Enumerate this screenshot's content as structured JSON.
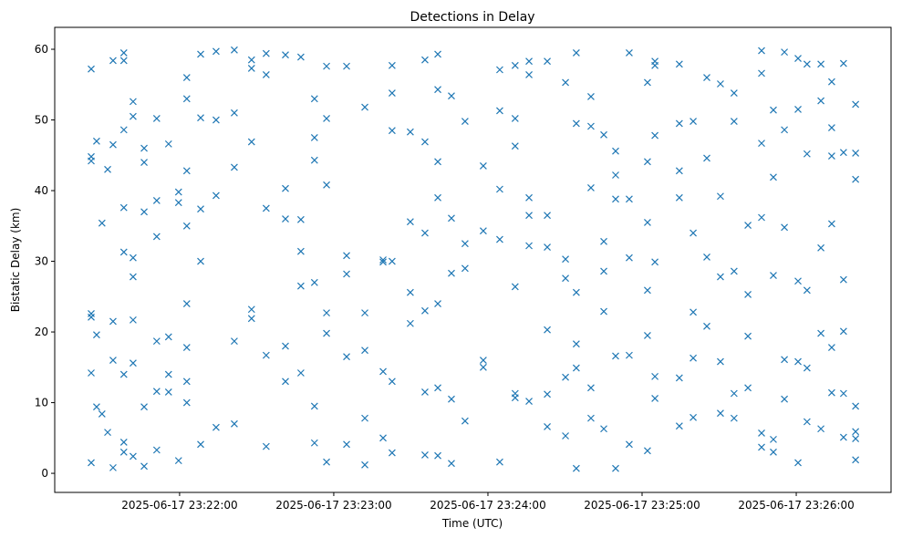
{
  "chart_data": {
    "type": "scatter",
    "title": "Detections in Delay",
    "xlabel": "Time (UTC)",
    "ylabel": "Bistatic Delay (km)",
    "x_units": "seconds after 2025-06-17 23:21:00",
    "xlim": [
      11.4,
      336.9
    ],
    "ylim": [
      -2.7,
      63.1
    ],
    "x_ticks": [
      {
        "value": 60,
        "label": "2025-06-17 23:22:00"
      },
      {
        "value": 120,
        "label": "2025-06-17 23:23:00"
      },
      {
        "value": 180,
        "label": "2025-06-17 23:24:00"
      },
      {
        "value": 240,
        "label": "2025-06-17 23:25:00"
      },
      {
        "value": 300,
        "label": "2025-06-17 23:26:00"
      }
    ],
    "y_ticks": [
      {
        "value": 0,
        "label": "0"
      },
      {
        "value": 10,
        "label": "10"
      },
      {
        "value": 20,
        "label": "20"
      },
      {
        "value": 30,
        "label": "30"
      },
      {
        "value": 40,
        "label": "40"
      },
      {
        "value": 50,
        "label": "50"
      },
      {
        "value": 60,
        "label": "60"
      }
    ],
    "grid": false,
    "marker": "x",
    "color": "#1f77b4",
    "columns": [
      {
        "t": 25.6,
        "y": [
          57.2,
          44.8,
          44.2,
          22.6,
          22.1,
          14.2,
          1.5
        ]
      },
      {
        "t": 27.7,
        "y": [
          47,
          19.6,
          9.4
        ]
      },
      {
        "t": 29.8,
        "y": [
          35.4,
          8.4
        ]
      },
      {
        "t": 32.0,
        "y": [
          43,
          5.8
        ]
      },
      {
        "t": 34.1,
        "y": [
          58.4,
          46.5,
          21.5,
          16,
          0.8
        ]
      },
      {
        "t": 38.3,
        "y": [
          59.5,
          58.4,
          48.6,
          37.6,
          31.3,
          14,
          4.4,
          3
        ]
      },
      {
        "t": 41.9,
        "y": [
          52.6,
          50.5,
          30.5,
          27.8,
          21.7,
          15.6,
          2.4
        ]
      },
      {
        "t": 46.2,
        "y": [
          46,
          44,
          37,
          9.4,
          1
        ]
      },
      {
        "t": 51.1,
        "y": [
          50.2,
          38.6,
          33.5,
          18.7,
          11.6,
          3.3
        ]
      },
      {
        "t": 55.7,
        "y": [
          46.6,
          19.3,
          14.0,
          11.5
        ]
      },
      {
        "t": 59.6,
        "y": [
          39.8,
          38.3,
          1.8
        ]
      },
      {
        "t": 62.8,
        "y": [
          56,
          53,
          42.8,
          35,
          24,
          17.8,
          13,
          10
        ]
      },
      {
        "t": 68.2,
        "y": [
          59.3,
          50.3,
          37.4,
          30,
          4.1
        ]
      },
      {
        "t": 74.2,
        "y": [
          59.7,
          50,
          39.3,
          6.5
        ]
      },
      {
        "t": 81.3,
        "y": [
          59.9,
          51,
          43.3,
          18.7,
          7
        ]
      },
      {
        "t": 88.0,
        "y": [
          58.5,
          57.3,
          46.9,
          23.2,
          21.9
        ]
      },
      {
        "t": 93.7,
        "y": [
          59.4,
          56.4,
          37.5,
          16.7,
          3.8
        ]
      },
      {
        "t": 101.2,
        "y": [
          59.2,
          40.3,
          36,
          18,
          13
        ]
      },
      {
        "t": 107.2,
        "y": [
          58.9,
          35.9,
          31.4,
          26.5,
          14.2
        ]
      },
      {
        "t": 112.5,
        "y": [
          53,
          47.5,
          44.3,
          27,
          9.5,
          4.3
        ]
      },
      {
        "t": 117.2,
        "y": [
          57.6,
          50.2,
          40.8,
          22.7,
          19.8,
          1.6
        ]
      },
      {
        "t": 125.0,
        "y": [
          57.6,
          30.8,
          28.2,
          16.5,
          4.1
        ]
      },
      {
        "t": 132.1,
        "y": [
          51.8,
          22.7,
          17.4,
          7.8,
          1.2
        ]
      },
      {
        "t": 139.2,
        "y": [
          29.9,
          30.2,
          14.4,
          5
        ]
      },
      {
        "t": 142.7,
        "y": [
          57.7,
          53.8,
          48.5,
          30,
          13,
          2.9
        ]
      },
      {
        "t": 149.8,
        "y": [
          48.3,
          35.6,
          25.6,
          21.2
        ]
      },
      {
        "t": 155.5,
        "y": [
          58.5,
          46.9,
          34,
          23,
          11.5,
          2.6
        ]
      },
      {
        "t": 160.5,
        "y": [
          59.3,
          54.3,
          44.1,
          39,
          24,
          12.1,
          2.5
        ]
      },
      {
        "t": 165.8,
        "y": [
          53.4,
          36.1,
          28.3,
          10.5,
          1.4
        ]
      },
      {
        "t": 171.1,
        "y": [
          49.8,
          32.5,
          29,
          7.4
        ]
      },
      {
        "t": 178.2,
        "y": [
          43.5,
          34.3,
          15,
          16
        ]
      },
      {
        "t": 184.6,
        "y": [
          57.1,
          51.3,
          40.2,
          33.1,
          1.6
        ]
      },
      {
        "t": 190.6,
        "y": [
          57.7,
          50.2,
          46.3,
          26.4,
          11.3,
          10.7
        ]
      },
      {
        "t": 196.0,
        "y": [
          58.3,
          56.4,
          39,
          36.5,
          32.2,
          10.2
        ]
      },
      {
        "t": 203.1,
        "y": [
          58.3,
          36.5,
          32,
          20.3,
          6.6,
          11.2
        ]
      },
      {
        "t": 210.2,
        "y": [
          55.3,
          30.3,
          27.6,
          13.6,
          5.3
        ]
      },
      {
        "t": 214.4,
        "y": [
          59.5,
          49.5,
          25.6,
          18.3,
          14.9,
          0.7
        ]
      },
      {
        "t": 220.1,
        "y": [
          53.3,
          49.1,
          40.4,
          12.1,
          7.8
        ]
      },
      {
        "t": 225.1,
        "y": [
          47.9,
          32.8,
          28.6,
          22.9,
          6.3
        ]
      },
      {
        "t": 229.7,
        "y": [
          45.6,
          42.2,
          38.8,
          16.6,
          0.7
        ]
      },
      {
        "t": 235.0,
        "y": [
          59.5,
          38.8,
          30.5,
          16.7,
          4.1
        ]
      },
      {
        "t": 242.1,
        "y": [
          55.3,
          44.1,
          35.5,
          25.9,
          19.5,
          3.2
        ]
      },
      {
        "t": 245.0,
        "y": [
          58.3,
          57.7,
          47.8,
          29.9,
          13.7,
          10.6
        ]
      },
      {
        "t": 254.5,
        "y": [
          57.9,
          49.5,
          42.8,
          39,
          13.5,
          6.7
        ]
      },
      {
        "t": 259.9,
        "y": [
          49.8,
          34,
          22.8,
          16.3,
          7.9
        ]
      },
      {
        "t": 265.2,
        "y": [
          56,
          44.6,
          30.6,
          20.8
        ]
      },
      {
        "t": 270.5,
        "y": [
          55.1,
          39.2,
          27.8,
          15.8,
          8.5
        ]
      },
      {
        "t": 275.8,
        "y": [
          53.8,
          49.8,
          28.6,
          11.3,
          7.8
        ]
      },
      {
        "t": 281.2,
        "y": [
          35.1,
          25.3,
          19.4,
          12.1
        ]
      },
      {
        "t": 286.5,
        "y": [
          59.8,
          56.6,
          46.7,
          36.2,
          5.7,
          3.7
        ]
      },
      {
        "t": 291.1,
        "y": [
          51.4,
          41.9,
          28.0,
          4.8,
          3.0
        ]
      },
      {
        "t": 295.4,
        "y": [
          59.6,
          48.6,
          34.8,
          16.1,
          10.5
        ]
      },
      {
        "t": 300.7,
        "y": [
          58.7,
          51.5,
          27.2,
          15.8,
          1.5
        ]
      },
      {
        "t": 304.2,
        "y": [
          57.9,
          45.2,
          25.9,
          14.9,
          7.3
        ]
      },
      {
        "t": 309.6,
        "y": [
          57.9,
          52.7,
          31.9,
          19.8,
          6.3
        ]
      },
      {
        "t": 313.8,
        "y": [
          55.4,
          48.9,
          44.9,
          35.3,
          17.8,
          11.4
        ]
      },
      {
        "t": 318.4,
        "y": [
          58,
          45.4,
          27.4,
          20.1,
          11.3,
          5.1
        ]
      },
      {
        "t": 323.1,
        "y": [
          52.2,
          45.3,
          41.6,
          9.5,
          5.9,
          4.9,
          1.9
        ]
      }
    ]
  }
}
